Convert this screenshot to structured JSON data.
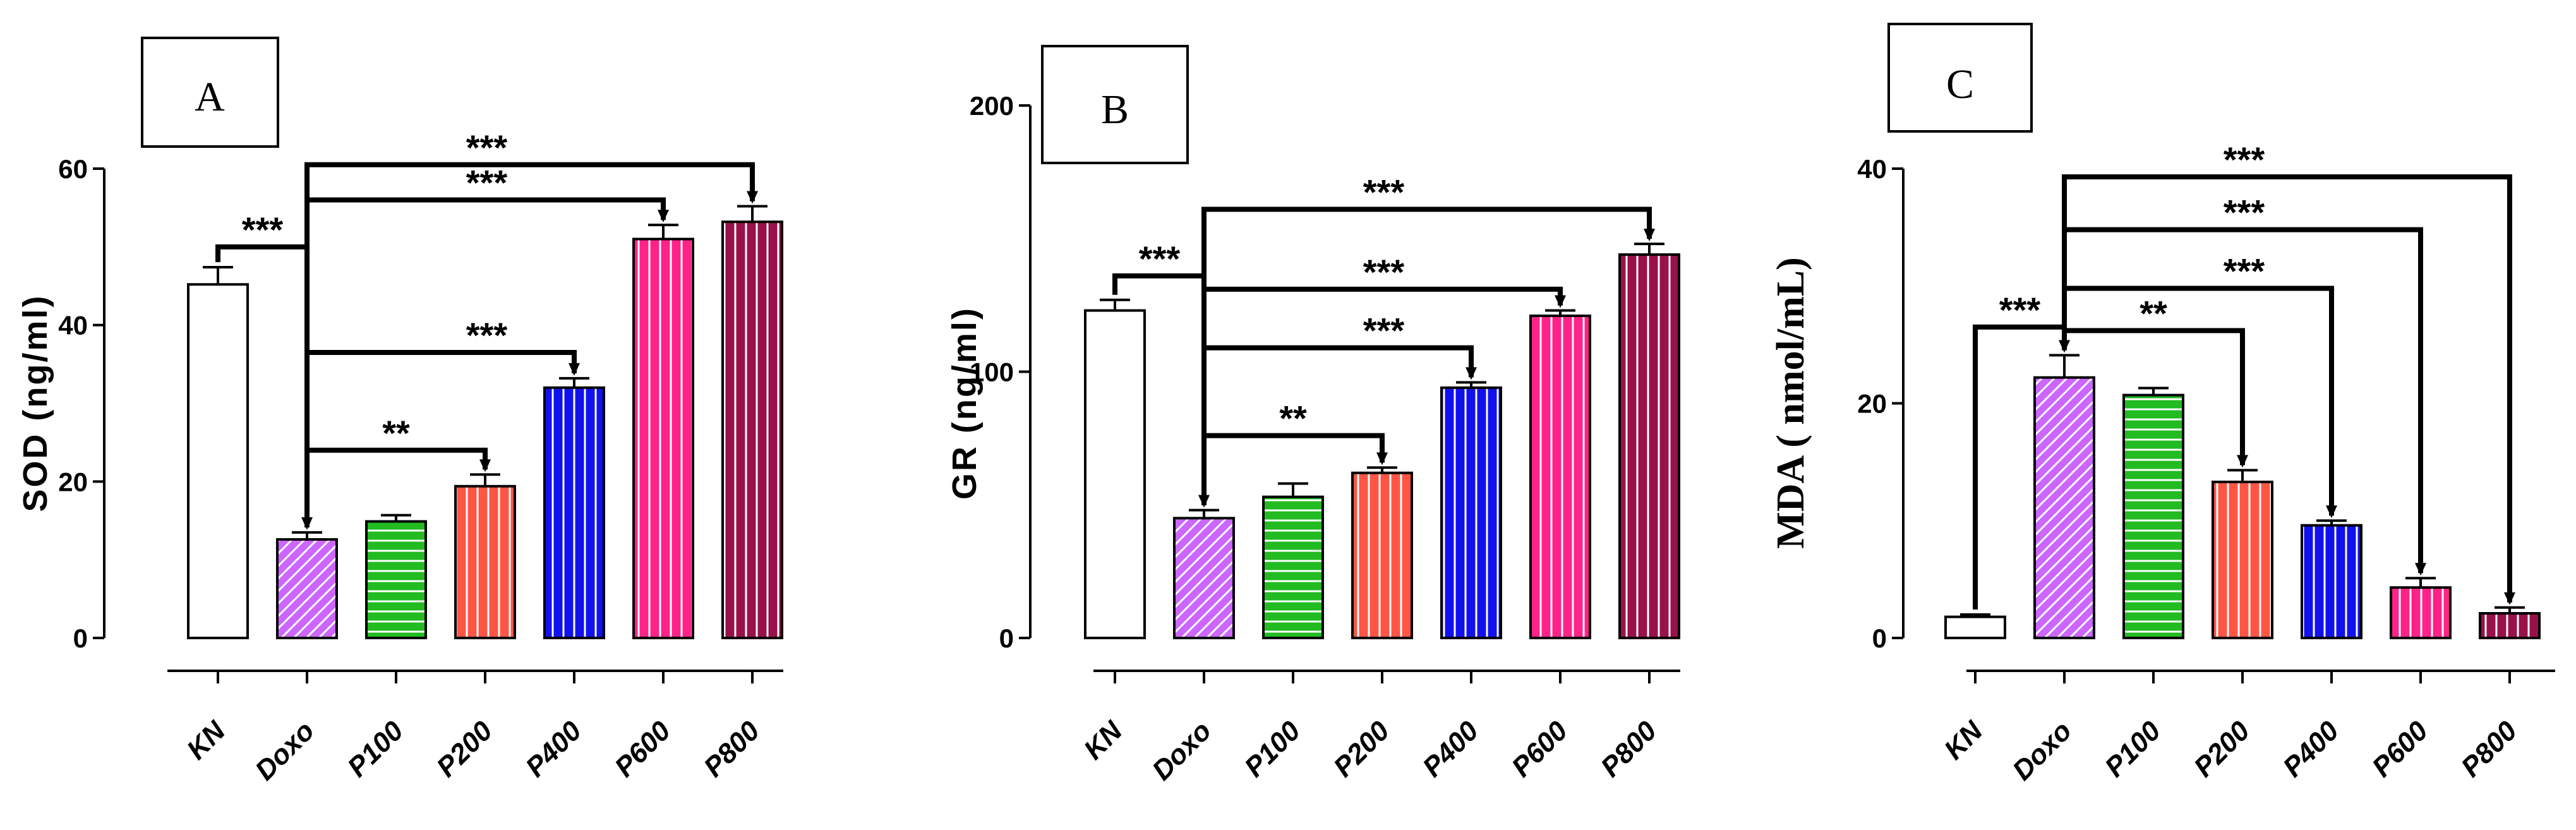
{
  "chart_data": [
    {
      "type": "bar",
      "panel_label": "A",
      "ylabel": "SOD (ng/ml)",
      "categories": [
        "KN",
        "Doxo",
        "P100",
        "P200",
        "P400",
        "P600",
        "P800"
      ],
      "values": [
        45.2,
        12.6,
        14.9,
        19.4,
        32.0,
        51.0,
        53.2
      ],
      "errors": [
        2.2,
        0.9,
        0.8,
        1.5,
        1.2,
        1.8,
        2.0
      ],
      "ylim": [
        0,
        60
      ],
      "yticks": [
        0,
        20,
        40,
        60
      ],
      "comparisons": [
        {
          "from": "KN",
          "to": "Doxo",
          "label": "***",
          "y": 50
        },
        {
          "from": "Doxo",
          "to": "P200",
          "label": "**",
          "y": 24
        },
        {
          "from": "Doxo",
          "to": "P400",
          "label": "***",
          "y": 36.5
        },
        {
          "from": "Doxo",
          "to": "P600",
          "label": "***",
          "y": 56
        },
        {
          "from": "Doxo",
          "to": "P800",
          "label": "***",
          "y": 60.5
        }
      ]
    },
    {
      "type": "bar",
      "panel_label": "B",
      "ylabel": "GR (ng/ml)",
      "categories": [
        "KN",
        "Doxo",
        "P100",
        "P200",
        "P400",
        "P600",
        "P800"
      ],
      "values": [
        123,
        45,
        53,
        62,
        94,
        121,
        144
      ],
      "errors": [
        4,
        3,
        5,
        2,
        2,
        2,
        4
      ],
      "ylim": [
        0,
        200
      ],
      "yticks": [
        0,
        100,
        200
      ],
      "comparisons": [
        {
          "from": "KN",
          "to": "Doxo",
          "label": "***",
          "y": 136
        },
        {
          "from": "Doxo",
          "to": "P200",
          "label": "**",
          "y": 76
        },
        {
          "from": "Doxo",
          "to": "P400",
          "label": "***",
          "y": 109
        },
        {
          "from": "Doxo",
          "to": "P600",
          "label": "***",
          "y": 131
        },
        {
          "from": "Doxo",
          "to": "P800",
          "label": "***",
          "y": 161
        }
      ]
    },
    {
      "type": "bar",
      "panel_label": "C",
      "ylabel": "MDA ( nmol/mL)",
      "categories": [
        "KN",
        "Doxo",
        "P100",
        "P200",
        "P400",
        "P600",
        "P800"
      ],
      "values": [
        1.8,
        22.2,
        20.7,
        13.3,
        9.6,
        4.3,
        2.1
      ],
      "errors": [
        0.2,
        1.9,
        0.6,
        1.0,
        0.4,
        0.8,
        0.5
      ],
      "ylim": [
        0,
        40
      ],
      "yticks": [
        0,
        20,
        40
      ],
      "comparisons": [
        {
          "from": "KN",
          "to": "Doxo",
          "label": "***",
          "y": 26.5
        },
        {
          "from": "Doxo",
          "to": "P200",
          "label": "**",
          "y": 26.2
        },
        {
          "from": "Doxo",
          "to": "P400",
          "label": "***",
          "y": 29.8
        },
        {
          "from": "Doxo",
          "to": "P600",
          "label": "***",
          "y": 34.8
        },
        {
          "from": "Doxo",
          "to": "P800",
          "label": "***",
          "y": 39.3
        }
      ]
    }
  ],
  "bar_styles": [
    {
      "fill": "#ffffff",
      "pattern": "none"
    },
    {
      "fill": "#cc66ff",
      "pattern": "diagonal"
    },
    {
      "fill": "#22bb22",
      "pattern": "horizontal"
    },
    {
      "fill": "#ff5544",
      "pattern": "vertical"
    },
    {
      "fill": "#1111ee",
      "pattern": "vertical"
    },
    {
      "fill": "#ff2288",
      "pattern": "vertical"
    },
    {
      "fill": "#99114a",
      "pattern": "vertical"
    }
  ]
}
